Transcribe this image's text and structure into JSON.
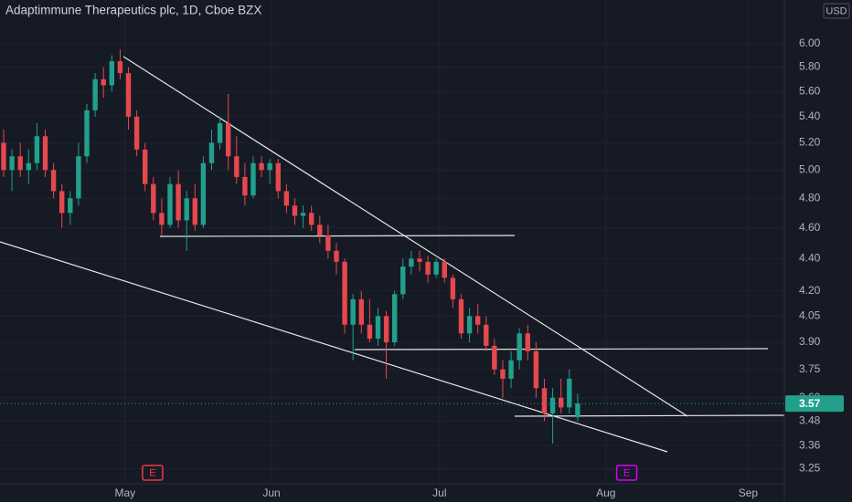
{
  "chart_data": {
    "type": "candlestick",
    "title": "Adaptimmune Therapeutics plc, 1D, Cboe BZX",
    "currency": "USD",
    "log_scale": true,
    "grid": true,
    "up_color": "#22a08c",
    "down_color": "#e5484d",
    "open": [
      5.2,
      5.0,
      5.1,
      5.0,
      5.05,
      5.25,
      5.0,
      4.85,
      4.7,
      4.8,
      5.1,
      5.45,
      5.7,
      5.65,
      5.85,
      5.75,
      5.4,
      5.15,
      4.9,
      4.7,
      4.62,
      4.9,
      4.65,
      4.8,
      4.62,
      5.05,
      5.2,
      5.35,
      5.1,
      4.95,
      4.82,
      5.05,
      5.0,
      5.05,
      4.85,
      4.75,
      4.68,
      4.7,
      4.62,
      4.55,
      4.45,
      4.38,
      4.0,
      4.15,
      4.0,
      3.92,
      4.05,
      3.9,
      4.18,
      4.35,
      4.4,
      4.38,
      4.3,
      4.38,
      4.28,
      4.15,
      3.95,
      4.05,
      4.0,
      3.88,
      3.75,
      3.7,
      3.8,
      3.95,
      3.85,
      3.65,
      3.52,
      3.6,
      3.55,
      3.5
    ],
    "high": [
      5.3,
      5.15,
      5.2,
      5.15,
      5.35,
      5.3,
      5.05,
      4.9,
      4.85,
      5.2,
      5.5,
      5.75,
      5.8,
      5.9,
      5.95,
      5.8,
      5.45,
      5.2,
      4.95,
      4.8,
      4.95,
      5.0,
      4.85,
      4.9,
      5.1,
      5.3,
      5.4,
      5.58,
      5.25,
      5.05,
      5.1,
      5.1,
      5.08,
      5.08,
      4.9,
      4.8,
      4.75,
      4.75,
      4.68,
      4.62,
      4.5,
      4.4,
      4.18,
      4.2,
      4.15,
      4.1,
      4.08,
      4.2,
      4.4,
      4.45,
      4.45,
      4.42,
      4.4,
      4.4,
      4.3,
      4.18,
      4.1,
      4.12,
      4.05,
      3.92,
      3.8,
      3.85,
      3.98,
      4.0,
      3.9,
      3.7,
      3.65,
      3.7,
      3.75,
      3.62
    ],
    "low": [
      4.95,
      4.85,
      4.95,
      4.9,
      5.0,
      4.95,
      4.8,
      4.6,
      4.62,
      4.75,
      5.05,
      5.4,
      5.55,
      5.6,
      5.7,
      5.3,
      5.1,
      4.85,
      4.65,
      4.55,
      4.6,
      4.6,
      4.45,
      4.58,
      4.6,
      5.0,
      5.15,
      5.0,
      4.9,
      4.75,
      4.8,
      4.95,
      4.9,
      4.8,
      4.7,
      4.62,
      4.6,
      4.58,
      4.5,
      4.4,
      4.3,
      3.95,
      3.8,
      3.95,
      3.9,
      3.88,
      3.7,
      3.88,
      4.15,
      4.3,
      4.32,
      4.25,
      4.28,
      4.25,
      4.1,
      3.92,
      3.9,
      3.95,
      3.85,
      3.72,
      3.6,
      3.65,
      3.75,
      3.8,
      3.6,
      3.48,
      3.37,
      3.52,
      3.52,
      3.48
    ],
    "close": [
      5.0,
      5.1,
      5.0,
      5.05,
      5.25,
      5.0,
      4.85,
      4.7,
      4.8,
      5.1,
      5.45,
      5.7,
      5.65,
      5.85,
      5.75,
      5.4,
      5.15,
      4.9,
      4.7,
      4.62,
      4.9,
      4.65,
      4.8,
      4.62,
      5.05,
      5.2,
      5.35,
      5.1,
      4.95,
      4.82,
      5.05,
      5.0,
      5.05,
      4.85,
      4.75,
      4.68,
      4.7,
      4.62,
      4.55,
      4.45,
      4.38,
      4.0,
      4.15,
      4.0,
      3.92,
      4.05,
      3.9,
      4.18,
      4.35,
      4.4,
      4.38,
      4.3,
      4.38,
      4.28,
      4.15,
      3.95,
      4.05,
      4.0,
      3.88,
      3.75,
      3.7,
      3.8,
      3.95,
      3.85,
      3.65,
      3.52,
      3.6,
      3.55,
      3.7,
      3.57
    ],
    "xlim": [
      -0.44,
      93.85
    ],
    "ylim": [
      3.18,
      6.39
    ],
    "xticks": [
      {
        "value": 14.6,
        "label": "May"
      },
      {
        "value": 32.2,
        "label": "Jun"
      },
      {
        "value": 52.4,
        "label": "Jul"
      },
      {
        "value": 72.4,
        "label": "Aug"
      },
      {
        "value": 89.5,
        "label": "Sep"
      }
    ],
    "yticks": [
      3.25,
      3.36,
      3.48,
      {
        "value": 3.6,
        "label": "3.60"
      },
      3.75,
      {
        "value": 3.9,
        "label": "3.90"
      },
      4.05,
      {
        "value": 4.2,
        "label": "4.20"
      },
      {
        "value": 4.4,
        "label": "4.40"
      },
      {
        "value": 4.6,
        "label": "4.60"
      },
      {
        "value": 4.8,
        "label": "4.80"
      },
      {
        "value": 5,
        "label": "5.00"
      },
      {
        "value": 5.2,
        "label": "5.20"
      },
      {
        "value": 5.4,
        "label": "5.40"
      },
      {
        "value": 5.6,
        "label": "5.60"
      },
      {
        "value": 5.8,
        "label": "5.80"
      },
      {
        "value": 6,
        "label": "6.00"
      }
    ],
    "events": [
      {
        "x": 17.9,
        "label": "E",
        "color": "#f23645"
      },
      {
        "x": 74.9,
        "label": "E",
        "color": "#d500f9"
      }
    ]
  }
}
